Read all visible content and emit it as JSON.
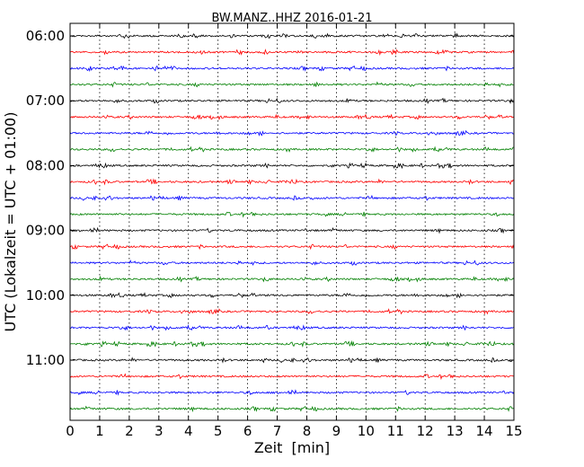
{
  "chart_data": {
    "type": "line",
    "title": "BW.MANZ..HHZ 2016-01-21",
    "xlabel": "Zeit  [min]",
    "ylabel": "UTC (Lokalzeit = UTC + 01:00)",
    "xlim": [
      0,
      15
    ],
    "x_ticks": [
      "0",
      "1",
      "2",
      "3",
      "4",
      "5",
      "6",
      "7",
      "8",
      "9",
      "10",
      "11",
      "12",
      "13",
      "14",
      "15"
    ],
    "y_ticks": [
      {
        "label": "06:00",
        "row": 0
      },
      {
        "label": "07:00",
        "row": 4
      },
      {
        "label": "08:00",
        "row": 8
      },
      {
        "label": "09:00",
        "row": 12
      },
      {
        "label": "10:00",
        "row": 16
      },
      {
        "label": "11:00",
        "row": 20
      }
    ],
    "row_colors": [
      "#000000",
      "#ff0000",
      "#0000ff",
      "#008000"
    ],
    "grid": {
      "x_dotted": true
    },
    "series": [
      {
        "start": "06:00",
        "color": "#000000"
      },
      {
        "start": "06:15",
        "color": "#ff0000"
      },
      {
        "start": "06:30",
        "color": "#0000ff"
      },
      {
        "start": "06:45",
        "color": "#008000"
      },
      {
        "start": "07:00",
        "color": "#000000"
      },
      {
        "start": "07:15",
        "color": "#ff0000"
      },
      {
        "start": "07:30",
        "color": "#0000ff"
      },
      {
        "start": "07:45",
        "color": "#008000"
      },
      {
        "start": "08:00",
        "color": "#000000"
      },
      {
        "start": "08:15",
        "color": "#ff0000"
      },
      {
        "start": "08:30",
        "color": "#0000ff"
      },
      {
        "start": "08:45",
        "color": "#008000"
      },
      {
        "start": "09:00",
        "color": "#000000"
      },
      {
        "start": "09:15",
        "color": "#ff0000"
      },
      {
        "start": "09:30",
        "color": "#0000ff"
      },
      {
        "start": "09:45",
        "color": "#008000"
      },
      {
        "start": "10:00",
        "color": "#000000"
      },
      {
        "start": "10:15",
        "color": "#ff0000"
      },
      {
        "start": "10:30",
        "color": "#0000ff"
      },
      {
        "start": "10:45",
        "color": "#008000"
      },
      {
        "start": "11:00",
        "color": "#000000"
      },
      {
        "start": "11:15",
        "color": "#ff0000"
      },
      {
        "start": "11:30",
        "color": "#0000ff"
      },
      {
        "start": "11:45",
        "color": "#008000"
      }
    ]
  }
}
